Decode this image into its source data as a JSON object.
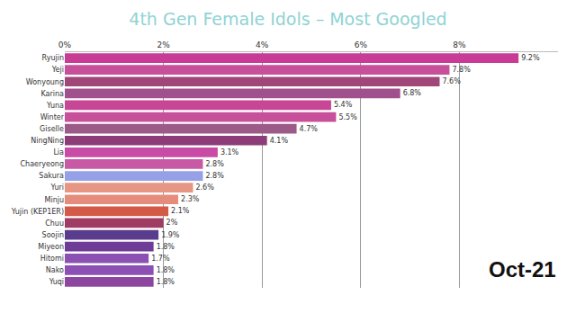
{
  "chart_data": {
    "type": "bar",
    "orientation": "horizontal",
    "title": "4th Gen Female Idols – Most Googled",
    "categories": [
      "Ryujin",
      "Yeji",
      "Wonyoung",
      "Karina",
      "Yuna",
      "Winter",
      "Giselle",
      "NingNing",
      "Lia",
      "Chaeryeong",
      "Sakura",
      "Yuri",
      "Minju",
      "Yujin (KEP1ER)",
      "Chuu",
      "Soojin",
      "Miyeon",
      "Hitomi",
      "Nako",
      "Yuqi"
    ],
    "values": [
      9.2,
      7.8,
      7.6,
      6.8,
      5.4,
      5.5,
      4.7,
      4.1,
      3.1,
      2.8,
      2.8,
      2.6,
      2.3,
      2.1,
      2,
      1.9,
      1.8,
      1.7,
      1.8,
      1.8
    ],
    "value_labels": [
      "9.2%",
      "7.8%",
      "7.6%",
      "6.8%",
      "5.4%",
      "5.5%",
      "4.7%",
      "4.1%",
      "3.1%",
      "2.8%",
      "2.8%",
      "2.6%",
      "2.3%",
      "2.1%",
      "2%",
      "1.9%",
      "1.8%",
      "1.7%",
      "1.8%",
      "1.8%"
    ],
    "colors": [
      "#c83c96",
      "#c8509b",
      "#a04678",
      "#a0508c",
      "#c84696",
      "#c8509b",
      "#9b5a87",
      "#8c3c78",
      "#c84ba5",
      "#c85aa5",
      "#96a0e6",
      "#e69682",
      "#e68c7d",
      "#d25a46",
      "#a03c64",
      "#5a3c8c",
      "#6e3c96",
      "#8c50b4",
      "#8c50b4",
      "#8c46a0"
    ],
    "data_labels": true,
    "xlim": [
      0,
      10
    ],
    "xticks": [
      {
        "value": 0,
        "label": "0%"
      },
      {
        "value": 2,
        "label": "2%"
      },
      {
        "value": 4,
        "label": "4%"
      },
      {
        "value": 6,
        "label": "6%"
      },
      {
        "value": 8,
        "label": "8%"
      }
    ],
    "grid": true,
    "annotation": "Oct-21"
  }
}
